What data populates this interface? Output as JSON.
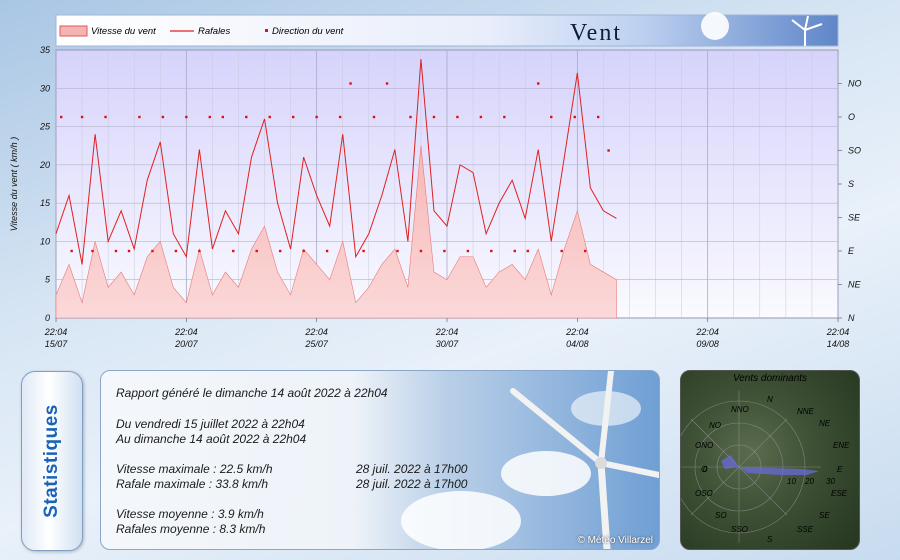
{
  "chart_data": {
    "type": "line",
    "title": "Vent",
    "ylabel": "Vitesse du vent ( km/h )",
    "ylim": [
      0,
      35
    ],
    "yticks": [
      "0",
      "5",
      "10",
      "15",
      "20",
      "25",
      "30",
      "35"
    ],
    "y2ticks": [
      "N",
      "NE",
      "E",
      "SE",
      "S",
      "SO",
      "O",
      "NO"
    ],
    "xticks": [
      {
        "time": "22:04",
        "date": "15/07"
      },
      {
        "time": "22:04",
        "date": "20/07"
      },
      {
        "time": "22:04",
        "date": "25/07"
      },
      {
        "time": "22:04",
        "date": "30/07"
      },
      {
        "time": "22:04",
        "date": "04/08"
      },
      {
        "time": "22:04",
        "date": "09/08"
      },
      {
        "time": "22:04",
        "date": "14/08"
      }
    ],
    "x_days": 30,
    "data_end_day": 21.5,
    "legend": [
      "Vitesse du vent",
      "Rafales",
      "Direction du vent"
    ],
    "legend_position": "top-left",
    "grid": true,
    "colors": {
      "speed_fill": "#f4a8a8",
      "gusts": "#e02020",
      "direction": "#e01010",
      "plot_bg_top": "#d9d6fb",
      "plot_bg_bottom": "#f8f8ff"
    },
    "series": [
      {
        "name": "Rafales",
        "x": [
          0,
          0.5,
          1,
          1.5,
          2,
          2.5,
          3,
          3.5,
          4,
          4.5,
          5,
          5.5,
          6,
          6.5,
          7,
          7.5,
          8,
          8.5,
          9,
          9.5,
          10,
          10.5,
          11,
          11.5,
          12,
          12.5,
          13,
          13.5,
          14,
          14.5,
          15,
          15.5,
          16,
          16.5,
          17,
          17.5,
          18,
          18.5,
          19,
          19.5,
          20,
          20.5,
          21,
          21.5
        ],
        "values": [
          11,
          16,
          7,
          24,
          10,
          14,
          9,
          18,
          23,
          11,
          8,
          22,
          9,
          14,
          11,
          21,
          26,
          15,
          9,
          21,
          16,
          12,
          24,
          8,
          11,
          16,
          22,
          10,
          33.8,
          14,
          12,
          20,
          19,
          11,
          15,
          18,
          13,
          22,
          10,
          21,
          32,
          17,
          14,
          13
        ]
      },
      {
        "name": "Vitesse du vent",
        "x": [
          0,
          0.5,
          1,
          1.5,
          2,
          2.5,
          3,
          3.5,
          4,
          4.5,
          5,
          5.5,
          6,
          6.5,
          7,
          7.5,
          8,
          8.5,
          9,
          9.5,
          10,
          10.5,
          11,
          11.5,
          12,
          12.5,
          13,
          13.5,
          14,
          14.5,
          15,
          15.5,
          16,
          16.5,
          17,
          17.5,
          18,
          18.5,
          19,
          19.5,
          20,
          20.5,
          21,
          21.5
        ],
        "values": [
          3,
          7,
          2,
          10,
          4,
          6,
          3,
          8,
          10,
          4,
          2,
          9,
          3,
          6,
          4,
          9,
          12,
          6,
          3,
          9,
          7,
          5,
          10,
          2,
          4,
          7,
          9,
          4,
          22.5,
          6,
          5,
          8,
          8,
          4,
          6,
          7,
          5,
          9,
          3,
          9,
          14,
          7,
          6,
          5
        ]
      },
      {
        "name": "Direction du vent",
        "x": [
          0.2,
          0.6,
          1,
          1.4,
          1.9,
          2.3,
          2.8,
          3.2,
          3.7,
          4.1,
          4.6,
          5.0,
          5.5,
          5.9,
          6.4,
          6.8,
          7.3,
          7.7,
          8.2,
          8.6,
          9.1,
          9.5,
          10,
          10.4,
          10.9,
          11.3,
          11.8,
          12.2,
          12.7,
          13.1,
          13.6,
          14,
          14.5,
          14.9,
          15.4,
          15.8,
          16.3,
          16.7,
          17.2,
          17.6,
          18.1,
          18.5,
          19,
          19.4,
          19.9,
          20.3,
          20.8,
          21.2
        ],
        "values": [
          "O",
          "E",
          "O",
          "E",
          "O",
          "E",
          "E",
          "O",
          "E",
          "O",
          "E",
          "O",
          "E",
          "O",
          "O",
          "E",
          "O",
          "E",
          "O",
          "E",
          "O",
          "E",
          "O",
          "E",
          "O",
          "NO",
          "E",
          "O",
          "NO",
          "E",
          "O",
          "E",
          "O",
          "E",
          "O",
          "E",
          "O",
          "E",
          "O",
          "E",
          "E",
          "NO",
          "O",
          "E",
          "O",
          "E",
          "O",
          "SO"
        ]
      }
    ]
  },
  "stats": {
    "tab_label": "Statistiques",
    "generated": "Rapport généré le dimanche 14 août 2022 à 22h04",
    "from": "Du vendredi 15 juillet 2022 à 22h04",
    "to": "Au dimanche 14 août 2022 à 22h04",
    "max_speed": "Vitesse maximale : 22.5 km/h",
    "max_speed_date": "28 juil. 2022 à 17h00",
    "max_gust": "Rafale maximale : 33.8 km/h",
    "max_gust_date": "28 juil. 2022 à 17h00",
    "avg_speed": "Vitesse moyenne : 3.9 km/h",
    "avg_gust": "Rafales moyenne : 8.3 km/h",
    "copyright": "© Météo Villarzel"
  },
  "winds": {
    "title": "Vents dominants",
    "directions": [
      "N",
      "NNE",
      "NE",
      "ENE",
      "E",
      "ESE",
      "SE",
      "SSE",
      "S",
      "SSO",
      "SO",
      "OSO",
      "O",
      "ONO",
      "NO",
      "NNO"
    ],
    "scale_labels": [
      "0",
      "10",
      "20",
      "30"
    ],
    "rose_color": "#6a6ad8"
  }
}
